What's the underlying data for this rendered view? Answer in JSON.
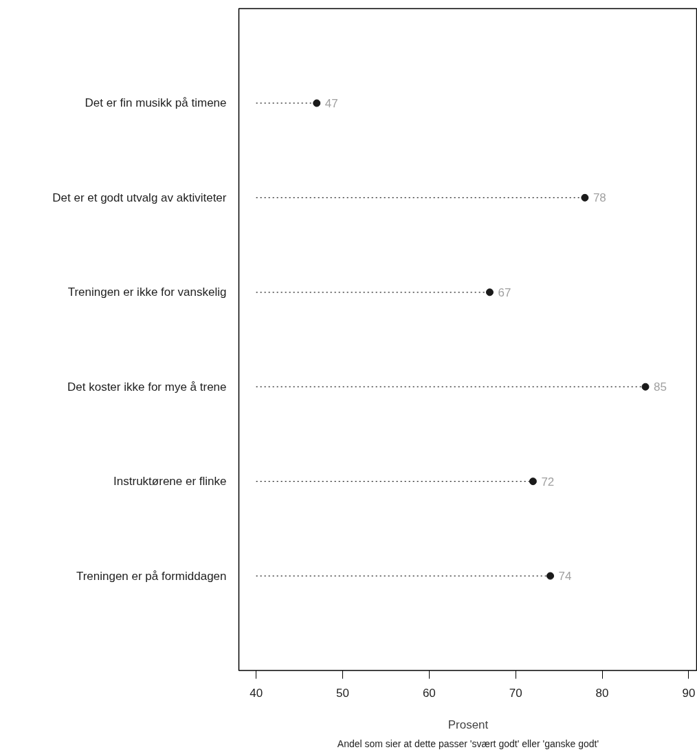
{
  "chart_data": {
    "type": "lollipop",
    "orientation": "horizontal",
    "categories": [
      "Det er fin musikk på timene",
      "Det er et godt utvalg av aktiviteter",
      "Treningen er ikke for vanskelig",
      "Det koster ikke for mye å trene",
      "Instruktørene er flinke",
      "Treningen er på formiddagen"
    ],
    "values": [
      47,
      78,
      67,
      85,
      72,
      74
    ],
    "color": "#1a1a1a",
    "xlabel": "Prosent",
    "annotations": [
      "Andel som sier at dette passer 'svært godt' eller 'ganske godt'"
    ],
    "xlim": [
      38,
      91
    ],
    "xticks": [
      40,
      50,
      60,
      70,
      80,
      90
    ],
    "data_labels": true,
    "marker": "circle",
    "line_style": "dotted"
  }
}
